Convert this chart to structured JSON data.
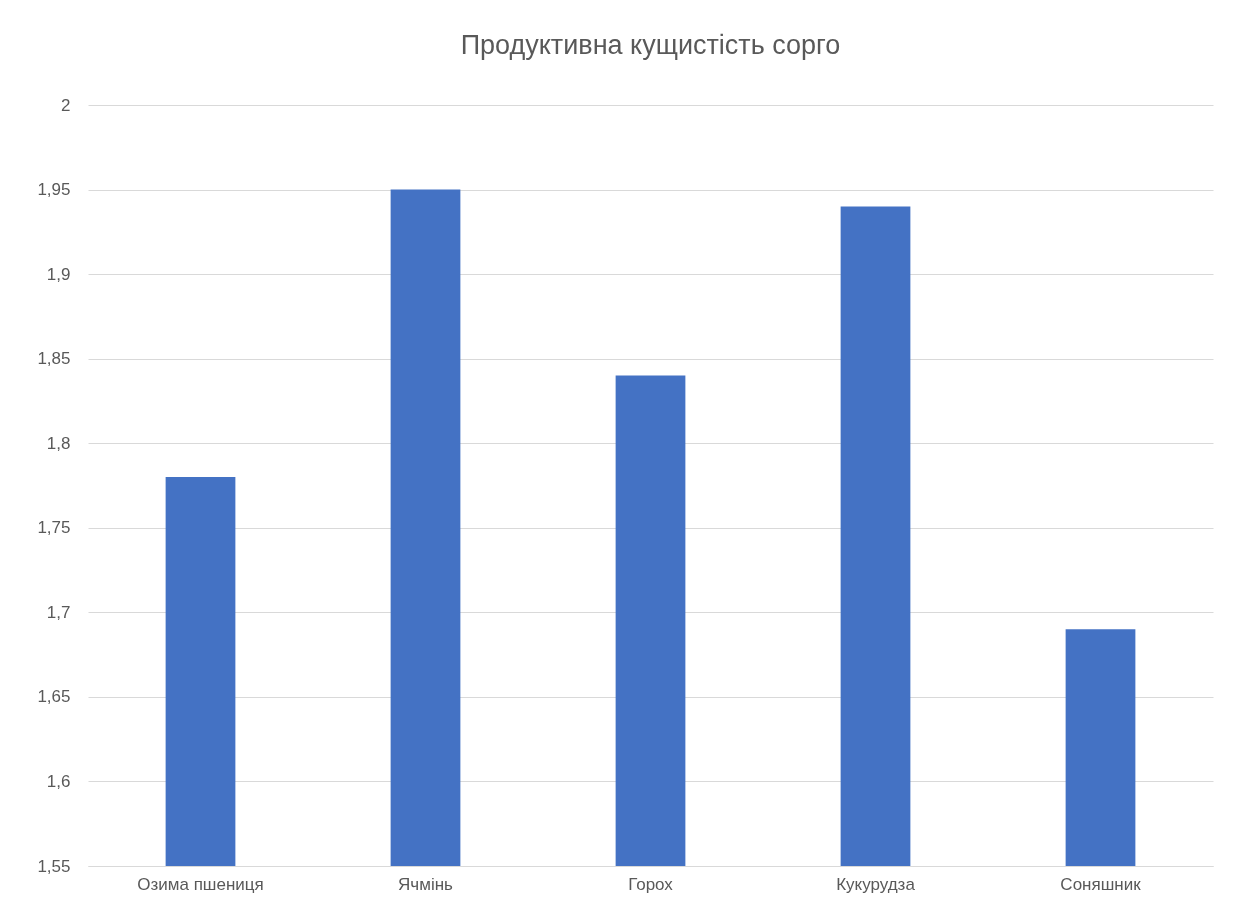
{
  "chart_data": {
    "type": "bar",
    "title": "Продуктивна кущистість сорго",
    "categories": [
      "Озима пшениця",
      "Ячмінь",
      "Горох",
      "Кукурудза",
      "Соняшник"
    ],
    "values": [
      1.78,
      1.95,
      1.84,
      1.94,
      1.69
    ],
    "color": "#4472c4",
    "ylim": [
      1.55,
      2
    ],
    "yticks": [
      {
        "value": 1.55,
        "label": "1,55"
      },
      {
        "value": 1.6,
        "label": "1,6"
      },
      {
        "value": 1.65,
        "label": "1,65"
      },
      {
        "value": 1.7,
        "label": "1,7"
      },
      {
        "value": 1.75,
        "label": "1,75"
      },
      {
        "value": 1.8,
        "label": "1,8"
      },
      {
        "value": 1.85,
        "label": "1,85"
      },
      {
        "value": 1.9,
        "label": "1,9"
      },
      {
        "value": 1.95,
        "label": "1,95"
      },
      2
    ],
    "grid": "y"
  }
}
